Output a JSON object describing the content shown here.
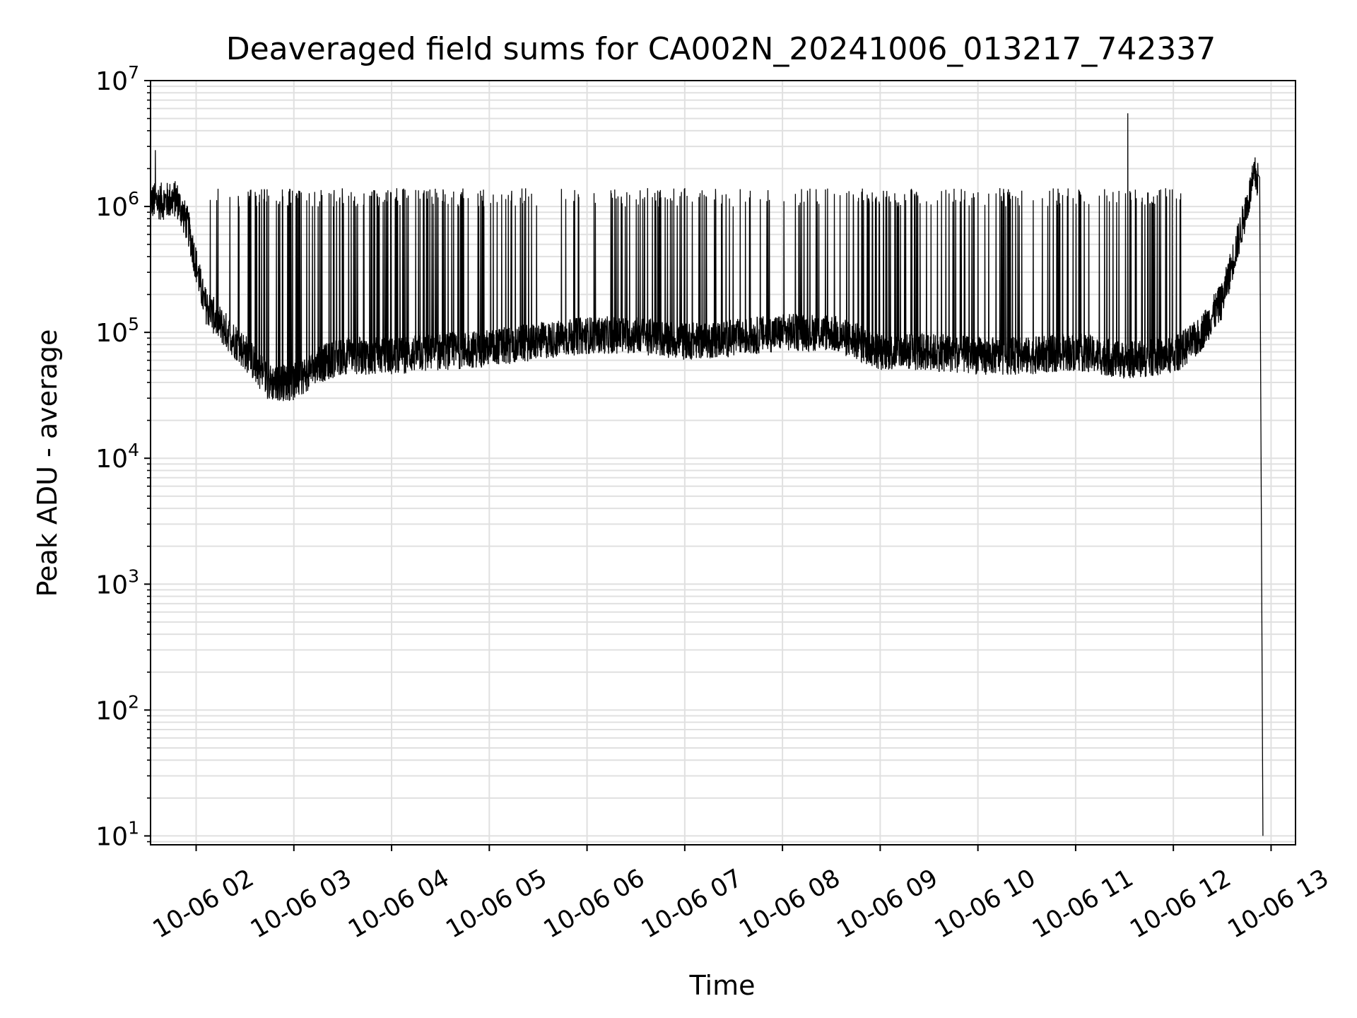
{
  "chart_data": {
    "type": "line",
    "title": "Deaveraged field sums for CA002N_20241006_013217_742337",
    "xlabel": "Time",
    "ylabel": "Peak ADU - average",
    "yscale": "log",
    "ylim": [
      8.5,
      10000000
    ],
    "xlim": [
      "2024-10-06 01:32",
      "2024-10-06 13:15"
    ],
    "grid": true,
    "legend": "none",
    "colors": {
      "line": "#000000",
      "grid": "#e0e0e0",
      "axes": "#000000"
    },
    "x_ticks": [
      {
        "value": "2024-10-06 02:00",
        "label": "10-06 02"
      },
      {
        "value": "2024-10-06 03:00",
        "label": "10-06 03"
      },
      {
        "value": "2024-10-06 04:00",
        "label": "10-06 04"
      },
      {
        "value": "2024-10-06 05:00",
        "label": "10-06 05"
      },
      {
        "value": "2024-10-06 06:00",
        "label": "10-06 06"
      },
      {
        "value": "2024-10-06 07:00",
        "label": "10-06 07"
      },
      {
        "value": "2024-10-06 08:00",
        "label": "10-06 08"
      },
      {
        "value": "2024-10-06 09:00",
        "label": "10-06 09"
      },
      {
        "value": "2024-10-06 10:00",
        "label": "10-06 10"
      },
      {
        "value": "2024-10-06 11:00",
        "label": "10-06 11"
      },
      {
        "value": "2024-10-06 12:00",
        "label": "10-06 12"
      },
      {
        "value": "2024-10-06 13:00",
        "label": "10-06 13"
      }
    ],
    "y_ticks": [
      {
        "value": 10,
        "base": "10",
        "exp": "1"
      },
      {
        "value": 100,
        "base": "10",
        "exp": "2"
      },
      {
        "value": 1000,
        "base": "10",
        "exp": "3"
      },
      {
        "value": 10000,
        "base": "10",
        "exp": "4"
      },
      {
        "value": 100000,
        "base": "10",
        "exp": "5"
      },
      {
        "value": 1000000,
        "base": "10",
        "exp": "6"
      },
      {
        "value": 10000000,
        "base": "10",
        "exp": "7"
      }
    ],
    "series": [
      {
        "baseline": [
          [
            "2024-10-06 01:32",
            1100000
          ],
          [
            "2024-10-06 01:40",
            1100000
          ],
          [
            "2024-10-06 01:48",
            1150000
          ],
          [
            "2024-10-06 01:55",
            700000
          ],
          [
            "2024-10-06 02:05",
            170000
          ],
          [
            "2024-10-06 02:15",
            115000
          ],
          [
            "2024-10-06 02:30",
            70000
          ],
          [
            "2024-10-06 02:45",
            40000
          ],
          [
            "2024-10-06 03:00",
            40000
          ],
          [
            "2024-10-06 03:15",
            55000
          ],
          [
            "2024-10-06 03:30",
            65000
          ],
          [
            "2024-10-06 04:00",
            65000
          ],
          [
            "2024-10-06 04:30",
            70000
          ],
          [
            "2024-10-06 05:00",
            75000
          ],
          [
            "2024-10-06 05:30",
            85000
          ],
          [
            "2024-10-06 06:00",
            95000
          ],
          [
            "2024-10-06 06:30",
            95000
          ],
          [
            "2024-10-06 07:00",
            85000
          ],
          [
            "2024-10-06 07:30",
            90000
          ],
          [
            "2024-10-06 08:00",
            100000
          ],
          [
            "2024-10-06 08:30",
            100000
          ],
          [
            "2024-10-06 09:00",
            70000
          ],
          [
            "2024-10-06 09:30",
            70000
          ],
          [
            "2024-10-06 10:00",
            65000
          ],
          [
            "2024-10-06 10:30",
            65000
          ],
          [
            "2024-10-06 11:00",
            70000
          ],
          [
            "2024-10-06 11:30",
            60000
          ],
          [
            "2024-10-06 12:00",
            65000
          ],
          [
            "2024-10-06 12:15",
            90000
          ],
          [
            "2024-10-06 12:30",
            180000
          ],
          [
            "2024-10-06 12:40",
            550000
          ],
          [
            "2024-10-06 12:50",
            1800000
          ],
          [
            "2024-10-06 12:52",
            1600000
          ]
        ],
        "noise_decades": 0.15,
        "spike_peak_range": [
          1000000,
          1400000
        ],
        "spike_regions": [
          [
            "2024-10-06 02:08",
            "2024-10-06 02:30",
            0.18
          ],
          [
            "2024-10-06 02:30",
            "2024-10-06 05:30",
            0.55
          ],
          [
            "2024-10-06 05:30",
            "2024-10-06 06:10",
            0.12
          ],
          [
            "2024-10-06 06:10",
            "2024-10-06 07:20",
            0.35
          ],
          [
            "2024-10-06 07:20",
            "2024-10-06 08:40",
            0.18
          ],
          [
            "2024-10-06 08:40",
            "2024-10-06 10:20",
            0.55
          ],
          [
            "2024-10-06 10:20",
            "2024-10-06 12:05",
            0.38
          ]
        ],
        "outliers": [
          [
            "2024-10-06 01:35",
            2800000
          ],
          [
            "2024-10-06 11:32",
            5500000
          ]
        ],
        "final_drop": [
          [
            "2024-10-06 12:53",
            1700000
          ],
          [
            "2024-10-06 12:55",
            10
          ]
        ]
      }
    ]
  }
}
